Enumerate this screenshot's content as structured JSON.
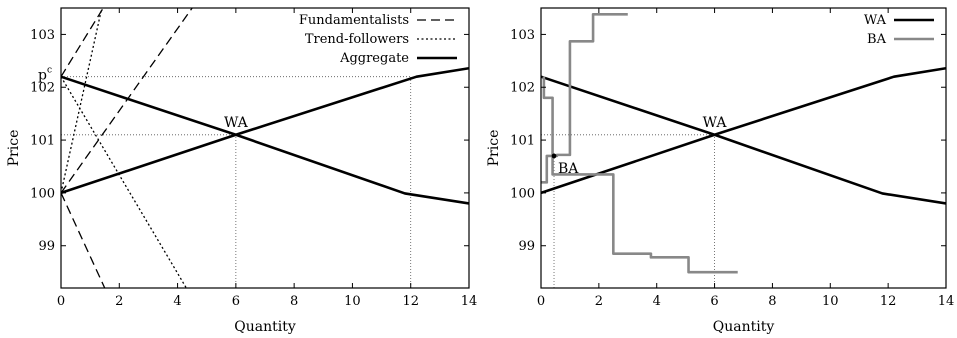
{
  "chart_data": [
    {
      "type": "line",
      "xlabel": "Quantity",
      "ylabel": "Price",
      "xlim": [
        0,
        14
      ],
      "ylim": [
        98.2,
        103.5
      ],
      "xticks": [
        0,
        2,
        4,
        6,
        8,
        10,
        12,
        14
      ],
      "yticks": [
        99,
        100,
        101,
        102,
        103
      ],
      "legend_position": "top-right",
      "series": [
        {
          "name": "Fundamentalists",
          "style": "dashed",
          "color": "#000000",
          "lines": [
            [
              [
                0,
                102.2
              ],
              [
                1.45,
                103.5
              ]
            ],
            [
              [
                0,
                100.0
              ],
              [
                1.5,
                98.2
              ]
            ],
            [
              [
                0,
                100.0
              ],
              [
                4.5,
                103.5
              ]
            ]
          ]
        },
        {
          "name": "Trend-followers",
          "style": "dotted",
          "color": "#000000",
          "lines": [
            [
              [
                0,
                102.2
              ],
              [
                4.3,
                98.2
              ]
            ],
            [
              [
                0,
                100.0
              ],
              [
                1.4,
                103.5
              ]
            ]
          ]
        },
        {
          "name": "Aggregate",
          "style": "solid-thick",
          "color": "#000000",
          "lines": [
            [
              [
                0,
                102.2
              ],
              [
                6,
                101.1
              ],
              [
                11.8,
                99.99
              ],
              [
                14,
                99.8
              ]
            ],
            [
              [
                0,
                100.0
              ],
              [
                6,
                101.1
              ],
              [
                12.2,
                102.2
              ],
              [
                14,
                102.36
              ]
            ]
          ]
        }
      ],
      "guides": [
        {
          "from": [
            0,
            102.2
          ],
          "to": [
            12,
            102.2
          ]
        },
        {
          "from": [
            0,
            101.1
          ],
          "to": [
            6,
            101.1
          ]
        },
        {
          "from": [
            6,
            98.2
          ],
          "to": [
            6,
            101.1
          ]
        },
        {
          "from": [
            12,
            98.2
          ],
          "to": [
            12,
            102.2
          ]
        }
      ],
      "annotations": [
        {
          "text": "WA",
          "x": 6,
          "y": 101.1
        },
        {
          "text": "p",
          "sup": "c",
          "x": 0,
          "y": 102.2
        }
      ]
    },
    {
      "type": "line",
      "xlabel": "Quantity",
      "ylabel": "Price",
      "xlim": [
        0,
        14
      ],
      "ylim": [
        98.2,
        103.5
      ],
      "xticks": [
        0,
        2,
        4,
        6,
        8,
        10,
        12,
        14
      ],
      "yticks": [
        99,
        100,
        101,
        102,
        103
      ],
      "legend_position": "top-right",
      "series": [
        {
          "name": "WA",
          "style": "solid-thick",
          "color": "#000000",
          "lines": [
            [
              [
                0,
                102.2
              ],
              [
                6,
                101.1
              ],
              [
                11.8,
                99.99
              ],
              [
                14,
                99.8
              ]
            ],
            [
              [
                0,
                100.0
              ],
              [
                6,
                101.1
              ],
              [
                12.2,
                102.2
              ],
              [
                14,
                102.36
              ]
            ]
          ]
        },
        {
          "name": "BA",
          "style": "solid-thick",
          "color": "#888888",
          "lines": [
            [
              [
                0.1,
                102.2
              ],
              [
                0.1,
                101.8
              ],
              [
                0.4,
                101.8
              ],
              [
                0.4,
                100.35
              ],
              [
                2.5,
                100.35
              ],
              [
                2.5,
                98.85
              ],
              [
                3.8,
                98.85
              ],
              [
                3.8,
                98.78
              ],
              [
                5.1,
                98.78
              ],
              [
                5.1,
                98.5
              ],
              [
                6.8,
                98.5
              ]
            ],
            [
              [
                0,
                100.2
              ],
              [
                0.2,
                100.2
              ],
              [
                0.2,
                100.7
              ],
              [
                0.55,
                100.7
              ],
              [
                0.55,
                100.72
              ],
              [
                1.0,
                100.72
              ],
              [
                1.0,
                102.87
              ],
              [
                1.8,
                102.87
              ],
              [
                1.8,
                103.38
              ],
              [
                3.0,
                103.38
              ]
            ]
          ]
        }
      ],
      "guides": [
        {
          "from": [
            0,
            101.1
          ],
          "to": [
            6,
            101.1
          ]
        },
        {
          "from": [
            6,
            98.2
          ],
          "to": [
            6,
            101.1
          ]
        },
        {
          "from": [
            0.45,
            98.2
          ],
          "to": [
            0.45,
            100.7
          ]
        }
      ],
      "annotations": [
        {
          "text": "WA",
          "x": 6,
          "y": 101.1
        },
        {
          "text": "BA",
          "x": 0.45,
          "y": 100.7
        }
      ]
    }
  ]
}
